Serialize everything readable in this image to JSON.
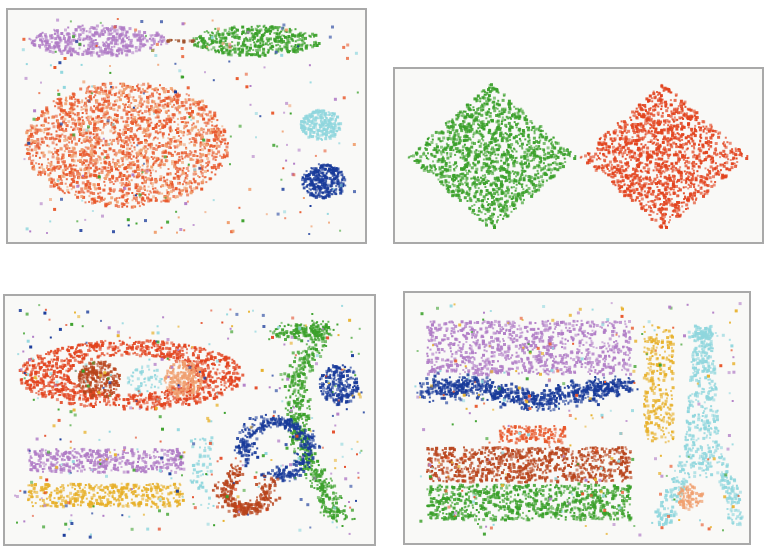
{
  "chart_data": [
    {
      "type": "scatter",
      "title": "",
      "xlabel": "",
      "ylabel": "",
      "grid": false,
      "legend": "none",
      "colors": {
        "purple": "#b07cc6",
        "green": "#3aa02a",
        "brown_bridge": "#a0522d",
        "orange_red": "#e8572a",
        "light_orange": "#f0a070",
        "cyan": "#8fd6dd",
        "navy": "#183a9a"
      },
      "clusters": [
        {
          "shape": "ellipse",
          "color": "purple",
          "center": [
            0.24,
            0.1
          ],
          "radii": [
            0.2,
            0.07
          ],
          "count": 420
        },
        {
          "shape": "ellipse",
          "color": "green",
          "center": [
            0.7,
            0.1
          ],
          "radii": [
            0.19,
            0.07
          ],
          "count": 420
        },
        {
          "shape": "line",
          "color": "brown_bridge",
          "from": [
            0.44,
            0.1
          ],
          "to": [
            0.52,
            0.1
          ],
          "count": 16
        },
        {
          "shape": "ellipse",
          "color": "orange_red",
          "center": [
            0.32,
            0.58
          ],
          "radii": [
            0.3,
            0.29
          ],
          "count": 1500
        },
        {
          "shape": "ellipse",
          "color": "light_orange",
          "center": [
            0.32,
            0.58
          ],
          "radii": [
            0.3,
            0.29
          ],
          "count": 500
        },
        {
          "shape": "ellipse",
          "color": "cyan",
          "center": [
            0.89,
            0.49
          ],
          "radii": [
            0.06,
            0.07
          ],
          "count": 240
        },
        {
          "shape": "ellipse",
          "color": "navy",
          "center": [
            0.9,
            0.75
          ],
          "radii": [
            0.065,
            0.08
          ],
          "count": 300
        }
      ],
      "noise": {
        "colors": [
          "orange_red",
          "light_orange",
          "cyan",
          "green",
          "navy",
          "purple"
        ],
        "count": 240
      }
    },
    {
      "type": "scatter",
      "title": "",
      "xlabel": "",
      "ylabel": "",
      "grid": false,
      "legend": "none",
      "colors": {
        "green": "#3aa02a",
        "red": "#e2431e"
      },
      "clusters": [
        {
          "shape": "diamond",
          "color": "green",
          "center": [
            0.25,
            0.5
          ],
          "half": [
            0.24,
            0.47
          ],
          "count": 1400
        },
        {
          "shape": "diamond",
          "color": "red",
          "center": [
            0.74,
            0.5
          ],
          "half": [
            0.24,
            0.47
          ],
          "count": 1400
        }
      ],
      "noise": {
        "colors": [],
        "count": 0
      }
    },
    {
      "type": "scatter",
      "title": "",
      "xlabel": "",
      "ylabel": "",
      "grid": false,
      "legend": "none",
      "colors": {
        "red": "#e2431e",
        "brown": "#b8441c",
        "light_orange": "#f0a070",
        "cyan": "#8fd6dd",
        "green": "#3aa02a",
        "navy": "#183a9a",
        "purple": "#b07cc6",
        "gold": "#e7b02a"
      },
      "clusters": [
        {
          "shape": "ring",
          "color": "red",
          "center": [
            0.33,
            0.3
          ],
          "radii": [
            0.32,
            0.15
          ],
          "thickness": 0.45,
          "count": 1100
        },
        {
          "shape": "ellipse",
          "color": "brown",
          "center": [
            0.24,
            0.32
          ],
          "radii": [
            0.06,
            0.08
          ],
          "count": 220
        },
        {
          "shape": "ellipse",
          "color": "light_orange",
          "center": [
            0.48,
            0.32
          ],
          "radii": [
            0.055,
            0.08
          ],
          "count": 200
        },
        {
          "shape": "ellipse",
          "color": "cyan",
          "center": [
            0.37,
            0.32
          ],
          "radii": [
            0.05,
            0.06
          ],
          "count": 50
        },
        {
          "shape": "rect",
          "color": "purple",
          "x": [
            0.04,
            0.48
          ],
          "y": [
            0.62,
            0.72
          ],
          "count": 420
        },
        {
          "shape": "rect",
          "color": "gold",
          "x": [
            0.04,
            0.48
          ],
          "y": [
            0.77,
            0.87
          ],
          "count": 420
        },
        {
          "shape": "rect",
          "color": "cyan",
          "x": [
            0.5,
            0.56
          ],
          "y": [
            0.56,
            0.88
          ],
          "count": 60
        },
        {
          "shape": "polyline",
          "color": "green",
          "points": [
            [
              0.74,
              0.12
            ],
            [
              0.88,
              0.1
            ],
            [
              0.8,
              0.3
            ],
            [
              0.8,
              0.55
            ],
            [
              0.86,
              0.75
            ],
            [
              0.92,
              0.93
            ]
          ],
          "width": 0.05,
          "count": 700
        },
        {
          "shape": "ellipse",
          "color": "navy",
          "center": [
            0.92,
            0.34
          ],
          "radii": [
            0.055,
            0.09
          ],
          "count": 200
        },
        {
          "shape": "arc",
          "color": "navy",
          "center": [
            0.74,
            0.62
          ],
          "radius": [
            0.09,
            0.12
          ],
          "angles": [
            160,
            470
          ],
          "width": 0.045,
          "count": 380
        },
        {
          "shape": "arc",
          "color": "brown",
          "center": [
            0.66,
            0.79
          ],
          "radius": [
            0.06,
            0.09
          ],
          "angles": [
            -20,
            250
          ],
          "width": 0.045,
          "count": 320
        }
      ],
      "noise": {
        "colors": [
          "cyan",
          "red",
          "green",
          "purple",
          "gold",
          "navy"
        ],
        "count": 340
      }
    },
    {
      "type": "scatter",
      "title": "",
      "xlabel": "",
      "ylabel": "",
      "grid": false,
      "legend": "none",
      "colors": {
        "purple": "#b07cc6",
        "navy": "#183a9a",
        "orange_red": "#e8572a",
        "brown": "#b8441c",
        "green": "#3aa02a",
        "gold": "#e7b02a",
        "cyan": "#8fd6dd",
        "light_orange": "#f0a070"
      },
      "clusters": [
        {
          "shape": "rect",
          "color": "purple",
          "x": [
            0.04,
            0.66
          ],
          "y": [
            0.08,
            0.31
          ],
          "count": 900
        },
        {
          "shape": "blob",
          "color": "navy",
          "points": [
            [
              0.04,
              0.37
            ],
            [
              0.18,
              0.36
            ],
            [
              0.36,
              0.42
            ],
            [
              0.52,
              0.38
            ],
            [
              0.64,
              0.36
            ]
          ],
          "width": 0.07,
          "count": 800
        },
        {
          "shape": "rect",
          "color": "orange_red",
          "x": [
            0.26,
            0.46
          ],
          "y": [
            0.53,
            0.6
          ],
          "count": 140
        },
        {
          "shape": "rect",
          "color": "brown",
          "x": [
            0.04,
            0.66
          ],
          "y": [
            0.62,
            0.77
          ],
          "count": 800
        },
        {
          "shape": "rect",
          "color": "green",
          "x": [
            0.04,
            0.66
          ],
          "y": [
            0.78,
            0.93
          ],
          "count": 800
        },
        {
          "shape": "rect",
          "color": "gold",
          "x": [
            0.7,
            0.79
          ],
          "y": [
            0.1,
            0.6
          ],
          "count": 260
        },
        {
          "shape": "tower",
          "color": "cyan",
          "count": 700
        },
        {
          "shape": "ellipse",
          "color": "light_orange",
          "center": [
            0.84,
            0.83
          ],
          "radii": [
            0.04,
            0.055
          ],
          "count": 90
        }
      ],
      "noise": {
        "colors": [
          "purple",
          "cyan",
          "gold",
          "green",
          "orange_red"
        ],
        "count": 260
      }
    }
  ]
}
